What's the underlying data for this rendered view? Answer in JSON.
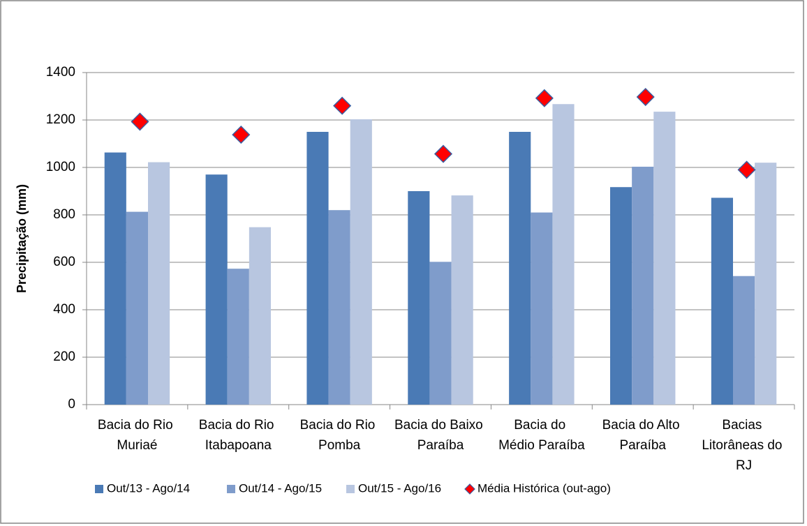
{
  "chart_data": {
    "type": "bar",
    "y_label": "Precipitação (mm)",
    "categories": [
      "Bacia do Rio Muriaé",
      "Bacia do Rio Itabapoana",
      "Bacia do Rio Pomba",
      "Bacia do Baixo Paraíba",
      "Bacia do Médio Paraíba",
      "Bacia do Alto Paraíba",
      "Bacias Litorâneas do RJ"
    ],
    "series": [
      {
        "name": "Out/13 - Ago/14",
        "type": "bar",
        "color": "#4a7ab5",
        "values": [
          1063,
          970,
          1150,
          900,
          1150,
          917,
          872
        ]
      },
      {
        "name": "Out/14 - Ago/15",
        "type": "bar",
        "color": "#7f9ccb",
        "values": [
          813,
          573,
          820,
          602,
          810,
          1003,
          542
        ]
      },
      {
        "name": "Out/15 - Ago/16",
        "type": "bar",
        "color": "#b8c6e0",
        "values": [
          1022,
          748,
          1203,
          882,
          1267,
          1235,
          1020
        ]
      },
      {
        "name": "Média Histórica (out-ago)",
        "type": "scatter",
        "marker": "diamond",
        "color": "#ff0000",
        "values": [
          1193,
          1138,
          1260,
          1057,
          1292,
          1297,
          990
        ]
      }
    ],
    "ylim": [
      0,
      1400
    ],
    "yticks": [
      0,
      200,
      400,
      600,
      800,
      1000,
      1200,
      1400
    ],
    "grid": true,
    "legend": "bottom"
  }
}
